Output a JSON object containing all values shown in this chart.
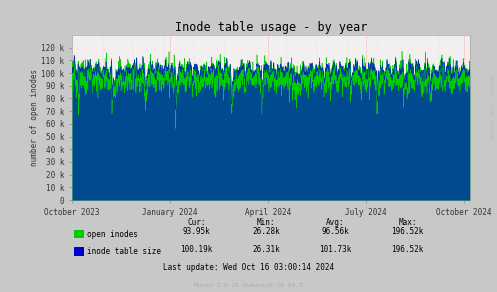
{
  "title": "Inode table usage - by year",
  "ylabel": "number of open inodes",
  "background_color": "#F0F0F0",
  "plot_bg_color": "#F0F0F0",
  "ylim": [
    0,
    130000
  ],
  "yticks": [
    0,
    10000,
    20000,
    30000,
    40000,
    50000,
    60000,
    70000,
    80000,
    90000,
    100000,
    110000,
    120000
  ],
  "ytick_labels": [
    "0",
    "10 k",
    "20 k",
    "30 k",
    "40 k",
    "50 k",
    "60 k",
    "70 k",
    "80 k",
    "90 k",
    "100 k",
    "110 k",
    "120 k"
  ],
  "legend_colors": [
    "#00CC00",
    "#0000CC"
  ],
  "line1_color": "#00CC00",
  "line2_color": "#0033AA",
  "footer_text": "Last update: Wed Oct 16 03:00:14 2024",
  "munin_text": "Munin 2.0.25-2ubuntu0.16.04.3",
  "watermark": "RRDTOOL / TOBI OETIKER",
  "stats": {
    "headers": [
      "Cur:",
      "Min:",
      "Avg:",
      "Max:"
    ],
    "open_inodes": [
      "93.95k",
      "26.28k",
      "96.56k",
      "196.52k"
    ],
    "inode_table_size": [
      "100.19k",
      "26.31k",
      "101.73k",
      "196.52k"
    ]
  },
  "xticklabels": [
    "October 2023",
    "January 2024",
    "April 2024",
    "July 2024",
    "October 2024"
  ],
  "xtick_positions": [
    0.0,
    0.2466,
    0.4932,
    0.7397,
    0.9863
  ],
  "outer_bg_color": "#C8C8C8",
  "red_grid_color": "#FFAAAA",
  "white_grid_color": "#FFFFFF"
}
